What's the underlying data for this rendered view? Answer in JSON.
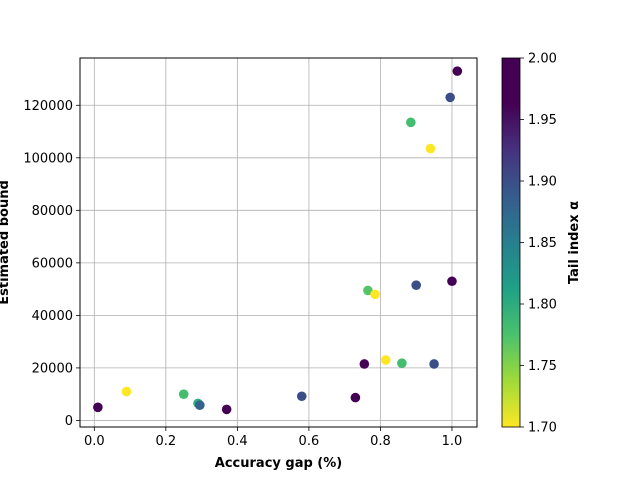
{
  "chart_data": {
    "type": "scatter",
    "xlabel": "Accuracy gap (%)",
    "ylabel": "Estimated bound",
    "xlim": [
      -0.04,
      1.07
    ],
    "ylim": [
      -2500,
      138000
    ],
    "xticks": [
      0.0,
      0.2,
      0.4,
      0.6,
      0.8,
      1.0
    ],
    "xtick_labels": [
      "0.0",
      "0.2",
      "0.4",
      "0.6",
      "0.8",
      "1.0"
    ],
    "yticks": [
      0,
      20000,
      40000,
      60000,
      80000,
      100000,
      120000
    ],
    "ytick_labels": [
      "0",
      "20000",
      "40000",
      "60000",
      "80000",
      "100000",
      "120000"
    ],
    "grid": true,
    "colorbar": {
      "label": "Tail index α",
      "colormap": "viridis",
      "range": [
        1.7,
        2.0
      ],
      "ticks": [
        1.7,
        1.75,
        1.8,
        1.85,
        1.9,
        1.95,
        2.0
      ],
      "tick_labels": [
        "1.70",
        "1.75",
        "1.80",
        "1.85",
        "1.90",
        "1.95",
        "2.00"
      ]
    },
    "points": [
      {
        "x": 0.01,
        "y": 5000,
        "alpha": 2.0
      },
      {
        "x": 0.09,
        "y": 11000,
        "alpha": 1.7
      },
      {
        "x": 0.25,
        "y": 10000,
        "alpha": 1.78
      },
      {
        "x": 0.29,
        "y": 6500,
        "alpha": 1.8
      },
      {
        "x": 0.295,
        "y": 5800,
        "alpha": 1.88
      },
      {
        "x": 0.37,
        "y": 4200,
        "alpha": 2.0
      },
      {
        "x": 0.58,
        "y": 9200,
        "alpha": 1.9
      },
      {
        "x": 0.73,
        "y": 8700,
        "alpha": 2.0
      },
      {
        "x": 0.755,
        "y": 21500,
        "alpha": 2.0
      },
      {
        "x": 0.765,
        "y": 49500,
        "alpha": 1.77
      },
      {
        "x": 0.785,
        "y": 48000,
        "alpha": 1.7
      },
      {
        "x": 0.815,
        "y": 23000,
        "alpha": 1.7
      },
      {
        "x": 0.86,
        "y": 21800,
        "alpha": 1.78
      },
      {
        "x": 0.885,
        "y": 113500,
        "alpha": 1.78
      },
      {
        "x": 0.9,
        "y": 51500,
        "alpha": 1.9
      },
      {
        "x": 0.94,
        "y": 103500,
        "alpha": 1.7
      },
      {
        "x": 0.95,
        "y": 21500,
        "alpha": 1.9
      },
      {
        "x": 0.995,
        "y": 123000,
        "alpha": 1.9
      },
      {
        "x": 1.0,
        "y": 53000,
        "alpha": 2.0
      },
      {
        "x": 1.015,
        "y": 133000,
        "alpha": 2.0
      }
    ]
  }
}
